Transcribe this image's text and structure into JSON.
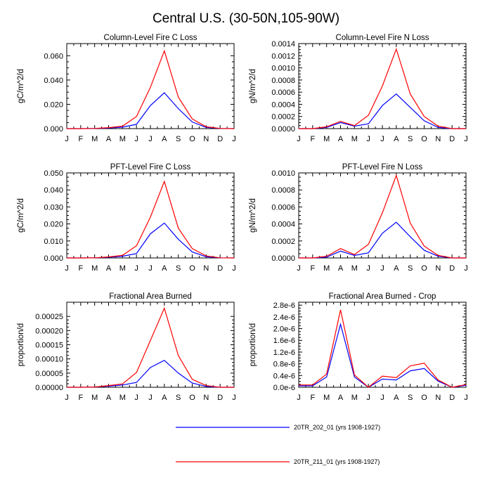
{
  "figure_title": "Central U.S. (30-50N,105-90W)",
  "colors": {
    "series_a": "#0000ff",
    "series_b": "#ff0000"
  },
  "legend": [
    {
      "label": "20TR_202_01 (yrs 1908-1927)",
      "color": "#0000ff"
    },
    {
      "label": "20TR_211_01 (yrs 1908-1927)",
      "color": "#ff0000"
    }
  ],
  "chart_data": [
    {
      "type": "line",
      "title": "Column-Level Fire C Loss",
      "ylabel": "gC/m^2/d",
      "xlabel": "",
      "categories": [
        "J",
        "F",
        "M",
        "A",
        "M",
        "J",
        "J",
        "A",
        "S",
        "O",
        "N",
        "D",
        "J"
      ],
      "ylim": [
        0,
        0.07
      ],
      "yticks": [
        0,
        0.02,
        0.04,
        0.06
      ],
      "ytick_labels": [
        "0.000",
        "0.020",
        "0.040",
        "0.060"
      ],
      "series": [
        {
          "name": "20TR_202_01 (yrs 1908-1927)",
          "color": "#0000ff",
          "values": [
            0.0,
            0.0,
            0.0001,
            0.0005,
            0.0012,
            0.0035,
            0.019,
            0.0295,
            0.0165,
            0.0055,
            0.001,
            0.0001,
            0.0
          ]
        },
        {
          "name": "20TR_211_01 (yrs 1908-1927)",
          "color": "#ff0000",
          "values": [
            0.0,
            0.0,
            0.0002,
            0.0008,
            0.002,
            0.01,
            0.034,
            0.064,
            0.026,
            0.008,
            0.0015,
            0.0002,
            0.0
          ]
        }
      ]
    },
    {
      "type": "line",
      "title": "Column-Level Fire N Loss",
      "ylabel": "gN/m^2/d",
      "xlabel": "",
      "categories": [
        "J",
        "F",
        "M",
        "A",
        "M",
        "J",
        "J",
        "A",
        "S",
        "O",
        "N",
        "D",
        "J"
      ],
      "ylim": [
        0,
        0.0014
      ],
      "yticks": [
        0,
        0.0002,
        0.0004,
        0.0006,
        0.0008,
        0.001,
        0.0012,
        0.0014
      ],
      "ytick_labels": [
        "0.0000",
        "0.0002",
        "0.0004",
        "0.0006",
        "0.0008",
        "0.0010",
        "0.0012",
        "0.0014"
      ],
      "series": [
        {
          "name": "20TR_202_01 (yrs 1908-1927)",
          "color": "#0000ff",
          "values": [
            0.0,
            0.0,
            2e-05,
            0.0001,
            4e-05,
            8e-05,
            0.00038,
            0.00057,
            0.00035,
            0.00013,
            2e-05,
            0.0,
            0.0
          ]
        },
        {
          "name": "20TR_211_01 (yrs 1908-1927)",
          "color": "#ff0000",
          "values": [
            0.0,
            0.0,
            3e-05,
            0.00012,
            5e-05,
            0.00022,
            0.0007,
            0.00131,
            0.00057,
            0.0002,
            4e-05,
            0.0,
            0.0
          ]
        }
      ]
    },
    {
      "type": "line",
      "title": "PFT-Level Fire C Loss",
      "ylabel": "gC/m^2/d",
      "xlabel": "",
      "categories": [
        "J",
        "F",
        "M",
        "A",
        "M",
        "J",
        "J",
        "A",
        "S",
        "O",
        "N",
        "D",
        "J"
      ],
      "ylim": [
        0,
        0.05
      ],
      "yticks": [
        0,
        0.01,
        0.02,
        0.03,
        0.04,
        0.05
      ],
      "ytick_labels": [
        "0.000",
        "0.010",
        "0.020",
        "0.030",
        "0.040",
        "0.050"
      ],
      "series": [
        {
          "name": "20TR_202_01 (yrs 1908-1927)",
          "color": "#0000ff",
          "values": [
            0.0,
            0.0,
            0.0001,
            0.0004,
            0.001,
            0.0026,
            0.0142,
            0.0205,
            0.011,
            0.0035,
            0.0007,
            0.0001,
            0.0
          ]
        },
        {
          "name": "20TR_211_01 (yrs 1908-1927)",
          "color": "#ff0000",
          "values": [
            0.0,
            0.0,
            0.0001,
            0.0006,
            0.0015,
            0.0072,
            0.024,
            0.045,
            0.0175,
            0.0055,
            0.0012,
            0.0001,
            0.0
          ]
        }
      ]
    },
    {
      "type": "line",
      "title": "PFT-Level Fire N Loss",
      "ylabel": "gN/m^2/d",
      "xlabel": "",
      "categories": [
        "J",
        "F",
        "M",
        "A",
        "M",
        "J",
        "J",
        "A",
        "S",
        "O",
        "N",
        "D",
        "J"
      ],
      "ylim": [
        0,
        0.001
      ],
      "yticks": [
        0,
        0.0002,
        0.0004,
        0.0006,
        0.0008,
        0.001
      ],
      "ytick_labels": [
        "0.0000",
        "0.0002",
        "0.0004",
        "0.0006",
        "0.0008",
        "0.0010"
      ],
      "series": [
        {
          "name": "20TR_202_01 (yrs 1908-1927)",
          "color": "#0000ff",
          "values": [
            0.0,
            0.0,
            1e-05,
            8e-05,
            3e-05,
            6e-05,
            0.00029,
            0.00042,
            0.00025,
            9e-05,
            2e-05,
            0.0,
            0.0
          ]
        },
        {
          "name": "20TR_211_01 (yrs 1908-1927)",
          "color": "#ff0000",
          "values": [
            0.0,
            0.0,
            2e-05,
            0.00011,
            4e-05,
            0.00016,
            0.00053,
            0.00097,
            0.00041,
            0.00014,
            3e-05,
            0.0,
            0.0
          ]
        }
      ]
    },
    {
      "type": "line",
      "title": "Fractional Area Burned",
      "ylabel": "proportion/d",
      "xlabel": "",
      "categories": [
        "J",
        "F",
        "M",
        "A",
        "M",
        "J",
        "J",
        "A",
        "S",
        "O",
        "N",
        "D",
        "J"
      ],
      "ylim": [
        0,
        0.0003
      ],
      "yticks": [
        0,
        5e-05,
        0.0001,
        0.00015,
        0.0002,
        0.00025
      ],
      "ytick_labels": [
        "0.00000",
        "0.00005",
        "0.00010",
        "0.00015",
        "0.00020",
        "0.00025"
      ],
      "series": [
        {
          "name": "20TR_202_01 (yrs 1908-1927)",
          "color": "#0000ff",
          "values": [
            0.0,
            0.0,
            1e-06,
            4e-06,
            8e-06,
            1.7e-05,
            7e-05,
            9.5e-05,
            5e-05,
            1.5e-05,
            3e-06,
            0.0,
            0.0
          ]
        },
        {
          "name": "20TR_211_01 (yrs 1908-1927)",
          "color": "#ff0000",
          "values": [
            0.0,
            0.0,
            1e-06,
            6e-06,
            1.2e-05,
            5.2e-05,
            0.000165,
            0.000279,
            0.000112,
            2.8e-05,
            6e-06,
            0.0,
            0.0
          ]
        }
      ]
    },
    {
      "type": "line",
      "title": "Fractional Area Burned - Crop",
      "ylabel": "proportion/d",
      "xlabel": "",
      "categories": [
        "J",
        "F",
        "M",
        "A",
        "M",
        "J",
        "J",
        "A",
        "S",
        "O",
        "N",
        "D",
        "J"
      ],
      "ylim": [
        0,
        2.9e-06
      ],
      "yticks": [
        0,
        4e-07,
        8e-07,
        1.2e-06,
        1.6e-06,
        2e-06,
        2.4e-06,
        2.8e-06
      ],
      "ytick_labels": [
        "0.0e-6",
        "0.4e-6",
        "0.8e-6",
        "1.2e-6",
        "1.6e-6",
        "2.0e-6",
        "2.4e-6",
        "2.8e-6"
      ],
      "series": [
        {
          "name": "20TR_202_01 (yrs 1908-1927)",
          "color": "#0000ff",
          "values": [
            5e-08,
            5e-08,
            3.5e-07,
            2.15e-06,
            3.5e-07,
            0.0,
            2.8e-07,
            2.5e-07,
            5.6e-07,
            6.4e-07,
            2.1e-07,
            0.0,
            7e-08
          ]
        },
        {
          "name": "20TR_211_01 (yrs 1908-1927)",
          "color": "#ff0000",
          "values": [
            8e-08,
            8e-08,
            4.5e-07,
            2.64e-06,
            4.2e-07,
            0.0,
            3.8e-07,
            3.3e-07,
            7.3e-07,
            8.2e-07,
            2.5e-07,
            0.0,
            9e-08
          ]
        }
      ]
    }
  ]
}
